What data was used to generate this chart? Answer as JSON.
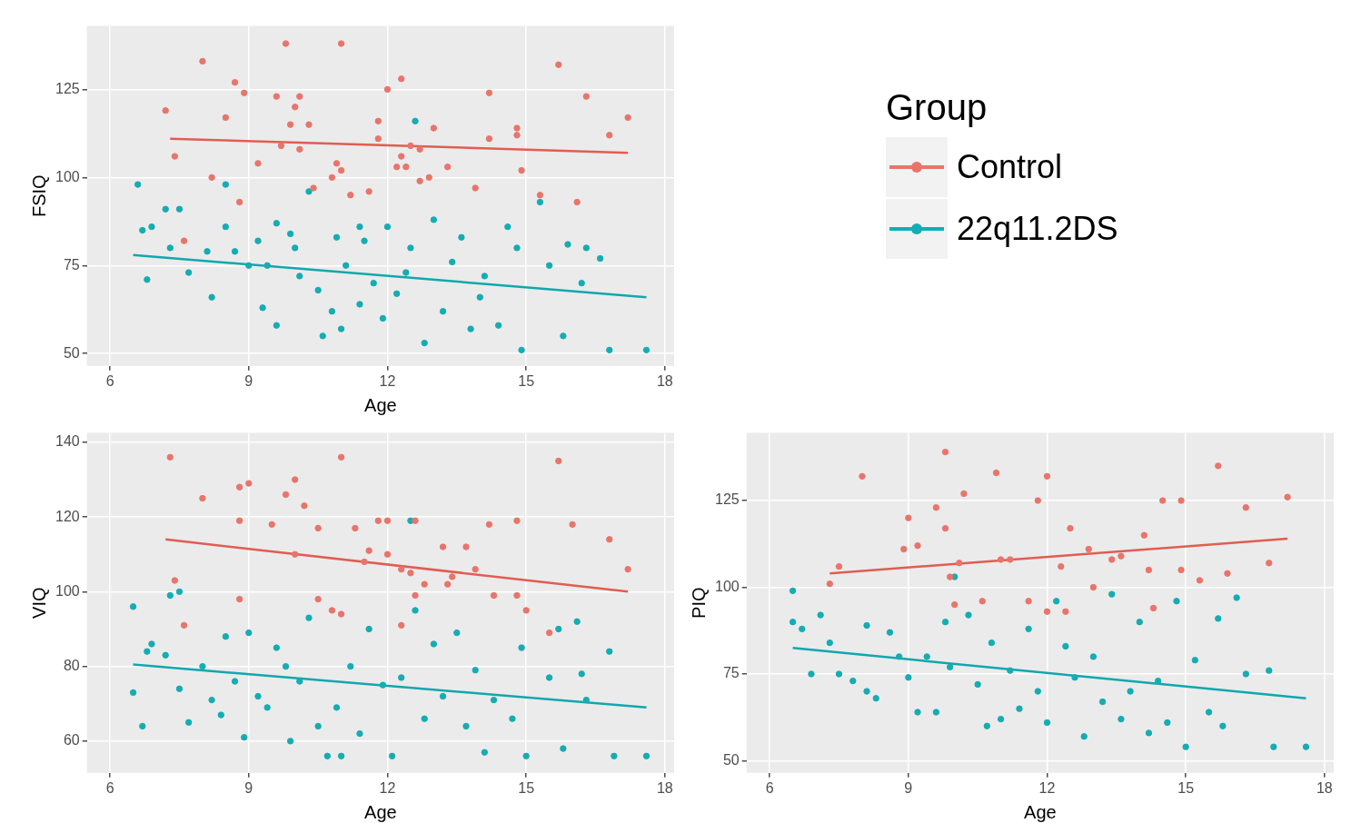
{
  "chart_data": [
    {
      "type": "scatter",
      "xlabel": "Age",
      "ylabel": "FSIQ",
      "xlim": [
        5.5,
        18.2
      ],
      "xticks": [
        6,
        9,
        12,
        15,
        18
      ],
      "ylim": [
        46.5,
        143
      ],
      "yticks": [
        50,
        75,
        100,
        125
      ],
      "grid": true,
      "marker": "circle",
      "legend": "right",
      "legend_title": "Group",
      "series": [
        {
          "name": "Control",
          "color": "#e8756b",
          "x": [
            8.0,
            9.8,
            11.0,
            15.7,
            16.3,
            17.2,
            16.8,
            7.2,
            7.4,
            8.7,
            8.9,
            9.6,
            10.1,
            10.0,
            8.5,
            9.9,
            10.3,
            11.8,
            12.3,
            12.0,
            14.2,
            14.8,
            14.8,
            13.0,
            13.3,
            13.9,
            14.2,
            14.9,
            15.3,
            16.1,
            7.6,
            8.2,
            8.8,
            9.2,
            9.7,
            10.1,
            10.9,
            11.0,
            11.2,
            11.6,
            12.3,
            12.5,
            12.7,
            12.9,
            12.7,
            12.2,
            11.8,
            12.4,
            10.4,
            10.8
          ],
          "values": [
            133,
            138,
            138,
            132,
            123,
            117,
            112,
            119,
            106,
            127,
            124,
            123,
            123,
            120,
            117,
            115,
            115,
            116,
            128,
            125,
            124,
            114,
            112,
            114,
            103,
            97,
            111,
            102,
            95,
            93,
            82,
            100,
            93,
            104,
            109,
            108,
            104,
            102,
            95,
            96,
            106,
            109,
            108,
            100,
            99,
            103,
            111,
            103,
            97,
            100
          ]
        },
        {
          "name": "22q11.2DS",
          "color": "#14adb3",
          "x": [
            6.6,
            6.7,
            6.8,
            6.9,
            7.2,
            7.5,
            7.3,
            7.7,
            8.1,
            8.2,
            8.5,
            8.5,
            8.7,
            9.0,
            9.2,
            9.3,
            9.4,
            9.6,
            9.6,
            9.9,
            10.0,
            10.1,
            10.3,
            10.5,
            10.6,
            10.8,
            10.9,
            11.0,
            11.1,
            11.4,
            11.5,
            11.7,
            11.9,
            12.0,
            12.2,
            12.4,
            12.5,
            12.8,
            13.0,
            13.2,
            13.4,
            13.6,
            13.8,
            14.0,
            14.1,
            14.4,
            14.6,
            14.8,
            14.9,
            15.3,
            15.5,
            15.9,
            15.8,
            16.2,
            16.3,
            16.6,
            16.8,
            17.6,
            12.6,
            11.4
          ],
          "values": [
            98,
            85,
            71,
            86,
            91,
            91,
            80,
            73,
            79,
            66,
            98,
            86,
            79,
            75,
            82,
            63,
            75,
            58,
            87,
            84,
            80,
            72,
            96,
            68,
            55,
            62,
            83,
            57,
            75,
            64,
            82,
            70,
            60,
            86,
            67,
            73,
            80,
            53,
            88,
            62,
            76,
            83,
            57,
            66,
            72,
            58,
            86,
            80,
            51,
            93,
            75,
            81,
            55,
            70,
            80,
            77,
            51,
            51,
            116,
            86
          ]
        },
        {
          "type": "line",
          "marker": "none",
          "color": "#e05d52",
          "x": [
            7.3,
            17.2
          ],
          "values": [
            111,
            107
          ]
        },
        {
          "type": "line",
          "marker": "none",
          "color": "#0fa8ad",
          "x": [
            6.5,
            17.6
          ],
          "values": [
            78,
            66
          ]
        }
      ]
    },
    {
      "type": "scatter",
      "xlabel": "Age",
      "ylabel": "VIQ",
      "xlim": [
        5.5,
        18.2
      ],
      "xticks": [
        6,
        9,
        12,
        15,
        18
      ],
      "ylim": [
        51.5,
        142.5
      ],
      "yticks": [
        60,
        80,
        100,
        120,
        140
      ],
      "grid": true,
      "marker": "circle",
      "series": [
        {
          "color": "#e8756b",
          "x": [
            7.3,
            11.0,
            15.7,
            8.0,
            8.8,
            9.0,
            9.8,
            10.0,
            10.2,
            8.8,
            9.5,
            10.0,
            10.5,
            11.3,
            11.8,
            12.0,
            12.6,
            13.2,
            13.7,
            14.2,
            14.8,
            16.0,
            16.8,
            17.2,
            7.4,
            7.6,
            8.8,
            10.5,
            10.8,
            11.0,
            11.5,
            12.0,
            12.3,
            12.5,
            12.8,
            12.6,
            13.3,
            13.9,
            14.3,
            14.8,
            15.0,
            15.5,
            12.3,
            11.6,
            13.4
          ],
          "values": [
            136,
            136,
            135,
            125,
            128,
            129,
            126,
            130,
            123,
            119,
            118,
            110,
            117,
            117,
            119,
            119,
            119,
            112,
            112,
            118,
            119,
            118,
            114,
            106,
            103,
            91,
            98,
            98,
            95,
            94,
            108,
            110,
            106,
            105,
            102,
            99,
            102,
            106,
            99,
            99,
            95,
            89,
            91,
            111,
            104
          ]
        },
        {
          "color": "#14adb3",
          "x": [
            6.5,
            6.5,
            6.7,
            6.8,
            6.9,
            7.2,
            7.3,
            7.5,
            7.5,
            7.7,
            8.0,
            8.2,
            8.4,
            8.5,
            8.7,
            8.9,
            9.0,
            9.2,
            9.4,
            9.6,
            9.8,
            9.9,
            10.1,
            10.3,
            10.5,
            10.7,
            10.9,
            11.0,
            11.2,
            11.4,
            11.6,
            11.9,
            12.1,
            12.3,
            12.5,
            12.6,
            12.8,
            13.0,
            13.2,
            13.5,
            13.7,
            13.9,
            14.1,
            14.3,
            14.7,
            14.9,
            15.0,
            15.5,
            15.7,
            15.8,
            16.1,
            16.2,
            16.3,
            16.8,
            16.9,
            17.6
          ],
          "values": [
            96,
            73,
            64,
            84,
            86,
            83,
            99,
            100,
            74,
            65,
            80,
            71,
            67,
            88,
            76,
            61,
            89,
            72,
            69,
            85,
            80,
            60,
            76,
            93,
            64,
            56,
            69,
            56,
            80,
            62,
            90,
            75,
            56,
            77,
            119,
            95,
            66,
            86,
            72,
            89,
            64,
            79,
            57,
            71,
            66,
            85,
            56,
            77,
            90,
            58,
            92,
            78,
            71,
            84,
            56,
            56
          ]
        },
        {
          "type": "line",
          "marker": "none",
          "color": "#e05d52",
          "x": [
            7.2,
            17.2
          ],
          "values": [
            114,
            100
          ]
        },
        {
          "type": "line",
          "marker": "none",
          "color": "#0fa8ad",
          "x": [
            6.5,
            17.6
          ],
          "values": [
            80.5,
            69
          ]
        }
      ]
    },
    {
      "type": "scatter",
      "xlabel": "Age",
      "ylabel": "PIQ",
      "xlim": [
        5.5,
        18.2
      ],
      "xticks": [
        6,
        9,
        12,
        15,
        18
      ],
      "ylim": [
        46.5,
        144.5
      ],
      "yticks": [
        50,
        75,
        100,
        125
      ],
      "grid": true,
      "marker": "circle",
      "series": [
        {
          "color": "#e8756b",
          "x": [
            8.0,
            9.8,
            10.9,
            12.0,
            15.7,
            16.3,
            17.2,
            16.8,
            7.5,
            7.3,
            9.0,
            9.6,
            10.2,
            9.8,
            8.9,
            9.2,
            10.1,
            10.6,
            11.0,
            11.8,
            12.5,
            12.9,
            12.3,
            12.0,
            12.4,
            13.0,
            13.4,
            13.6,
            14.1,
            14.2,
            14.3,
            14.5,
            14.9,
            15.3,
            14.9,
            15.9,
            11.2,
            11.6,
            9.9,
            10.0
          ],
          "values": [
            132,
            139,
            133,
            132,
            135,
            123,
            126,
            107,
            106,
            101,
            120,
            123,
            127,
            117,
            111,
            112,
            107,
            96,
            108,
            125,
            117,
            111,
            106,
            93,
            93,
            100,
            108,
            109,
            115,
            105,
            94,
            125,
            125,
            102,
            105,
            104,
            108,
            96,
            103,
            95
          ]
        },
        {
          "color": "#14adb3",
          "x": [
            6.5,
            6.5,
            6.7,
            6.9,
            7.1,
            7.3,
            7.5,
            7.8,
            8.1,
            8.1,
            8.3,
            8.6,
            8.8,
            9.0,
            9.2,
            9.4,
            9.6,
            9.8,
            9.9,
            10.0,
            10.3,
            10.5,
            10.7,
            10.8,
            11.0,
            11.2,
            11.4,
            11.6,
            11.8,
            12.0,
            12.2,
            12.4,
            12.6,
            12.8,
            13.0,
            13.2,
            13.4,
            13.6,
            13.8,
            14.0,
            14.2,
            14.4,
            14.6,
            14.8,
            15.0,
            15.2,
            15.5,
            15.7,
            15.8,
            16.1,
            16.3,
            16.8,
            16.9,
            17.6
          ],
          "values": [
            99,
            90,
            88,
            75,
            92,
            84,
            75,
            73,
            70,
            89,
            68,
            87,
            80,
            74,
            64,
            80,
            64,
            90,
            77,
            103,
            92,
            72,
            60,
            84,
            62,
            76,
            65,
            88,
            70,
            61,
            96,
            83,
            74,
            57,
            80,
            67,
            98,
            62,
            70,
            90,
            58,
            73,
            61,
            96,
            54,
            79,
            64,
            91,
            60,
            97,
            75,
            76,
            54,
            54
          ]
        },
        {
          "type": "line",
          "marker": "none",
          "color": "#e05d52",
          "x": [
            7.3,
            17.2
          ],
          "values": [
            104,
            114
          ]
        },
        {
          "type": "line",
          "marker": "none",
          "color": "#0fa8ad",
          "x": [
            6.5,
            17.6
          ],
          "values": [
            82.5,
            68
          ]
        }
      ]
    }
  ]
}
